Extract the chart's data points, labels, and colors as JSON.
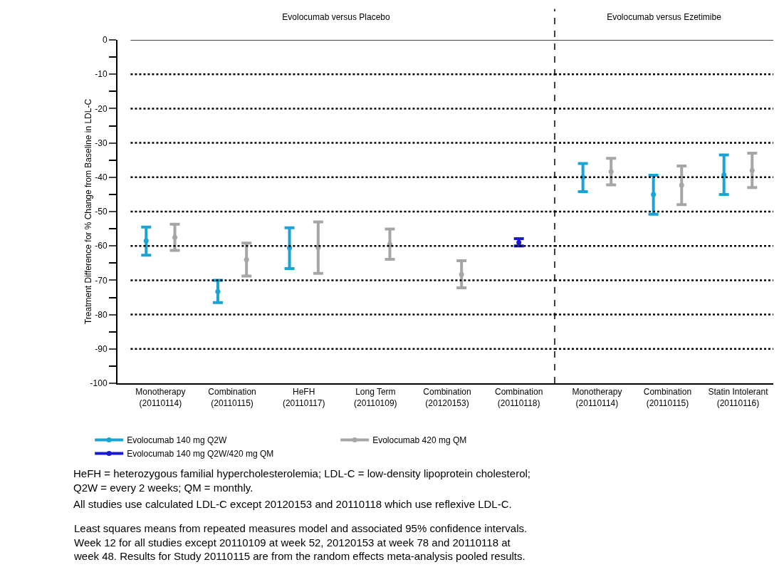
{
  "chart_data": [
    {
      "type": "scatter",
      "title": "Evolocumab versus Placebo",
      "ylabel": "Treatment Difference for % Change from Baseline in LDL-C",
      "categories": [
        "Monotherapy\n(20110114)",
        "Combination\n(20110115)",
        "HeFH\n(20110117)",
        "Long Term\n(20110109)",
        "Combination\n(20120153)",
        "Combination\n(20110118)"
      ],
      "series": [
        {
          "name": "Evolocumab 140 mg Q2W",
          "color": "#1aa3d4",
          "values": [
            -58.5,
            -73.3,
            -60.6,
            null,
            null,
            null
          ],
          "errors": [
            [
              -62.7,
              -54.5
            ],
            [
              -76.5,
              -70
            ],
            [
              -66.6,
              -54.7
            ],
            null,
            null,
            null
          ]
        },
        {
          "name": "Evolocumab 420 mg QM",
          "color": "#a6a6a6",
          "values": [
            -57.5,
            -64,
            -60.5,
            -59.5,
            -68.3,
            null
          ],
          "errors": [
            [
              -61.3,
              -53.7
            ],
            [
              -68.8,
              -59.2
            ],
            [
              -68,
              -53
            ],
            [
              -63.9,
              -55.1
            ],
            [
              -72.2,
              -64.3
            ],
            null
          ]
        },
        {
          "name": "Evolocumab 140 mg Q2W/420 mg QM",
          "color": "#1a1ad4",
          "values": [
            null,
            null,
            null,
            null,
            null,
            -59
          ],
          "errors": [
            null,
            null,
            null,
            null,
            null,
            [
              -60,
              -57.9
            ]
          ]
        }
      ],
      "ylim": [
        -100,
        0
      ],
      "yticks": [
        0,
        -10,
        -20,
        -30,
        -40,
        -50,
        -60,
        -70,
        -80,
        -90,
        -100
      ],
      "grid": "y",
      "legend": "bottom",
      "marker": "circle",
      "annotations": [
        "HeFH = heterozygous familial hypercholesterolemia; LDL-C = low-density lipoprotein cholesterol;\nQ2W = every 2 weeks; QM = monthly.",
        "All studies use calculated LDL-C except 20120153 and 20110118 which use reflexive LDL-C.",
        "Least squares means from repeated measures model and associated 95% confidence intervals.\nWeek 12 for all studies except 20110109 at week 52, 20120153 at week 78 and 20110118 at\nweek 48. Results for Study 20110115 are from the random effects meta-analysis pooled results."
      ]
    },
    {
      "type": "scatter",
      "title": "Evolocumab versus Ezetimibe",
      "categories": [
        "Monotherapy\n(20110114)",
        "Combination\n(20110115)",
        "Statin Intolerant\n(20110116)"
      ],
      "series": [
        {
          "color": "#1aa3d4",
          "values": [
            -40,
            -45,
            -39.3
          ],
          "errors": [
            [
              -44.2,
              -36
            ],
            [
              -50.8,
              -39.4
            ],
            [
              -45,
              -33.5
            ]
          ]
        },
        {
          "color": "#a6a6a6",
          "values": [
            -38.4,
            -42.3,
            -38
          ],
          "errors": [
            [
              -42.2,
              -34.5
            ],
            [
              -48,
              -36.7
            ],
            [
              -43,
              -33
            ]
          ]
        }
      ],
      "ylim": [
        -100,
        0
      ],
      "yticks": [
        0,
        -10,
        -20,
        -30,
        -40,
        -50,
        -60,
        -70,
        -80,
        -90,
        -100
      ],
      "tick_labels": "x",
      "grid": "y",
      "marker": "circle"
    }
  ]
}
